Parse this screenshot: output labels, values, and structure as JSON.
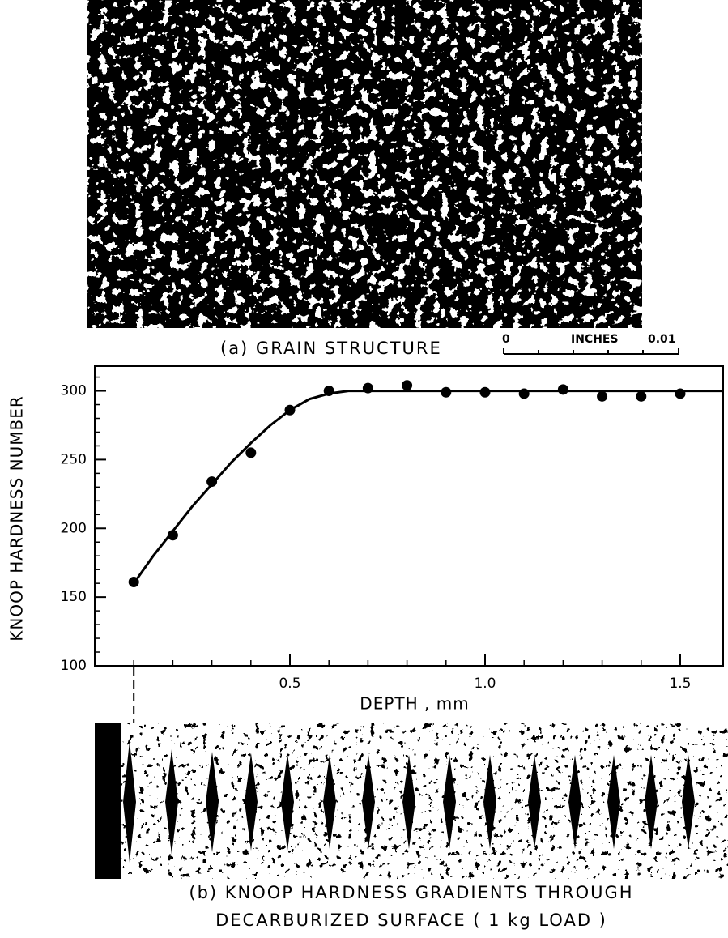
{
  "chart_data": {
    "type": "scatter",
    "caption_a": "(a) GRAIN STRUCTURE",
    "scale_bar": {
      "start": "0",
      "unit": "INCHES",
      "end": "0.01"
    },
    "ylabel": "KNOOP HARDNESS NUMBER",
    "xlabel": "DEPTH , mm",
    "caption_b": [
      "(b) KNOOP HARDNESS GRADIENTS THROUGH",
      "DECARBURIZED SURFACE ( 1 kg LOAD )"
    ],
    "x": [
      0.1,
      0.2,
      0.3,
      0.4,
      0.5,
      0.6,
      0.7,
      0.8,
      0.9,
      1.0,
      1.1,
      1.2,
      1.3,
      1.4,
      1.5
    ],
    "values": [
      161,
      195,
      234,
      255,
      286,
      300,
      302,
      304,
      299,
      299,
      298,
      301,
      296,
      296,
      298
    ],
    "color": "#000000",
    "curve": {
      "x": [
        0.1,
        0.15,
        0.2,
        0.25,
        0.3,
        0.35,
        0.4,
        0.45,
        0.5,
        0.55,
        0.6,
        0.65,
        0.7,
        0.8,
        1.0,
        1.2,
        1.4,
        1.61
      ],
      "values": [
        160,
        180,
        198,
        216,
        232,
        248,
        262,
        275,
        286,
        294,
        298,
        300,
        300,
        300,
        300,
        300,
        300,
        300
      ]
    },
    "xlim": [
      0,
      1.61
    ],
    "ylim": [
      100,
      318
    ],
    "xticks": [
      0.5,
      {
        "value": 1,
        "label": "1.0"
      },
      1.5
    ],
    "xminorticks": [
      0.1,
      0.2,
      0.3,
      0.4,
      0.6,
      0.7,
      0.8,
      0.9,
      1.1,
      1.2,
      1.3,
      1.4
    ],
    "yticks": [
      100,
      150,
      200,
      250,
      300
    ],
    "yminorticks": [
      110,
      120,
      130,
      140,
      160,
      170,
      180,
      190,
      210,
      220,
      230,
      240,
      260,
      270,
      280,
      290,
      310
    ]
  }
}
